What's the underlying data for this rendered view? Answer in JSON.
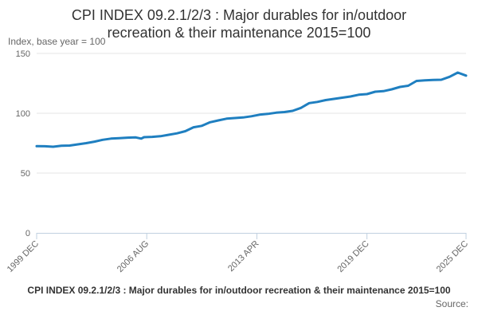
{
  "chart_data": {
    "type": "line",
    "title": "CPI INDEX 09.2.1/2/3 : Major durables for in/outdoor recreation & their maintenance 2015=100",
    "title_lines": [
      "CPI INDEX 09.2.1/2/3 : Major durables for in/outdoor",
      "recreation & their maintenance 2015=100"
    ],
    "ylabel": "Index, base year = 100",
    "xlabel": "",
    "ylim": [
      0,
      150
    ],
    "yticks": [
      0,
      50,
      100,
      150
    ],
    "x_tick_labels": [
      "1999 DEC",
      "2006 AUG",
      "2013 APR",
      "2019 DEC",
      "2025 DEC"
    ],
    "x_tick_positions": [
      0,
      80,
      160,
      240,
      312
    ],
    "n_points": 313,
    "series": [
      {
        "name": "CPI INDEX 09.2.1/2/3",
        "color": "#1f7fc0",
        "x": [
          0,
          6,
          12,
          18,
          24,
          30,
          36,
          42,
          48,
          54,
          60,
          66,
          72,
          76,
          78,
          84,
          90,
          96,
          102,
          108,
          114,
          120,
          126,
          132,
          138,
          144,
          150,
          156,
          162,
          168,
          174,
          180,
          186,
          192,
          198,
          204,
          210,
          216,
          222,
          228,
          234,
          240,
          246,
          252,
          258,
          264,
          270,
          276,
          282,
          288,
          294,
          300,
          306,
          312
        ],
        "values": [
          72.5,
          72.4,
          72.0,
          72.8,
          73.0,
          74.0,
          75.0,
          76.3,
          77.8,
          78.8,
          79.2,
          79.6,
          79.8,
          78.8,
          80.0,
          80.3,
          80.8,
          82.0,
          83.2,
          85.0,
          88.3,
          89.5,
          92.5,
          94.0,
          95.5,
          96.0,
          96.5,
          97.5,
          98.8,
          99.5,
          100.5,
          101.0,
          102.0,
          104.5,
          108.5,
          109.5,
          111.0,
          112.0,
          113.0,
          114.0,
          115.5,
          116.0,
          118.0,
          118.5,
          120.0,
          122.0,
          123.0,
          127.0,
          127.5,
          127.8,
          128.0,
          130.5,
          134.0,
          131.5
        ]
      }
    ]
  },
  "footer": {
    "title": "CPI INDEX 09.2.1/2/3 : Major durables for in/outdoor recreation & their maintenance 2015=100",
    "source": "Source:"
  }
}
